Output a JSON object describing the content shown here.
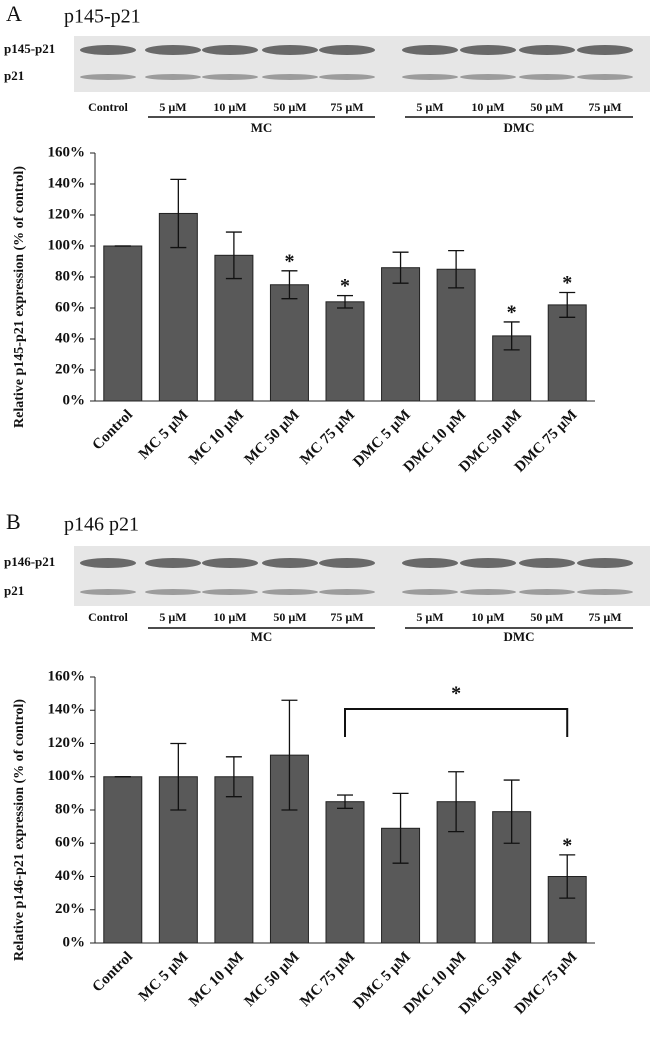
{
  "chart_data": [
    {
      "type": "bar",
      "panel": "A",
      "title": "p145-p21",
      "blot": {
        "rows": [
          "p145-p21",
          "p21"
        ],
        "lanes": [
          "Control",
          "5 µM",
          "10 µM",
          "50 µM",
          "75 µM",
          "5 µM",
          "10 µM",
          "50 µM",
          "75 µM"
        ],
        "groups": [
          "MC",
          "DMC"
        ]
      },
      "y_label": "Relative p145-p21 expression  (% of control)",
      "categories": [
        "Control",
        "MC 5 µM",
        "MC 10 µM",
        "MC 50 µM",
        "MC 75 µM",
        "DMC 5 µM",
        "DMC 10 µM",
        "DMC 50 µM",
        "DMC 75 µM"
      ],
      "values": [
        100,
        121,
        94,
        75,
        64,
        86,
        85,
        42,
        62
      ],
      "errors": [
        0,
        22,
        15,
        9,
        4,
        10,
        12,
        9,
        8
      ],
      "significance": [
        null,
        null,
        null,
        "*",
        "*",
        null,
        null,
        "*",
        "*"
      ],
      "color": "#595959",
      "ylim": [
        0,
        160
      ],
      "yticks": [
        {
          "value": 0,
          "label": "0%"
        },
        {
          "value": 20,
          "label": "20%"
        },
        {
          "value": 40,
          "label": "40%"
        },
        {
          "value": 60,
          "label": "60%"
        },
        {
          "value": 80,
          "label": "80%"
        },
        {
          "value": 100,
          "label": "100%"
        },
        {
          "value": 120,
          "label": "120%"
        },
        {
          "value": 140,
          "label": "140%"
        },
        {
          "value": 160,
          "label": "160%"
        }
      ]
    },
    {
      "type": "bar",
      "panel": "B",
      "title": "p146 p21",
      "blot": {
        "rows": [
          "p146-p21",
          "p21"
        ],
        "lanes": [
          "Control",
          "5 µM",
          "10 µM",
          "50 µM",
          "75 µM",
          "5 µM",
          "10 µM",
          "50 µM",
          "75 µM"
        ],
        "groups": [
          "MC",
          "DMC"
        ]
      },
      "y_label": "Relative p146-p21 expression  (% of control)",
      "categories": [
        "Control",
        "MC 5 µM",
        "MC 10 µM",
        "MC 50 µM",
        "MC 75 µM",
        "DMC 5 µM",
        "DMC 10 µM",
        "DMC 50 µM",
        "DMC 75 µM"
      ],
      "values": [
        100,
        100,
        100,
        113,
        85,
        69,
        85,
        79,
        40
      ],
      "errors": [
        0,
        20,
        12,
        33,
        4,
        21,
        18,
        19,
        13
      ],
      "significance": [
        null,
        null,
        null,
        null,
        null,
        null,
        null,
        null,
        "*"
      ],
      "bracket": {
        "from": "MC 75 µM",
        "to": "DMC 75 µM",
        "text": "*"
      },
      "color": "#595959",
      "ylim": [
        0,
        160
      ],
      "yticks": [
        {
          "value": 0,
          "label": "0%"
        },
        {
          "value": 20,
          "label": "20%"
        },
        {
          "value": 40,
          "label": "40%"
        },
        {
          "value": 60,
          "label": "60%"
        },
        {
          "value": 80,
          "label": "80%"
        },
        {
          "value": 100,
          "label": "100%"
        },
        {
          "value": 120,
          "label": "120%"
        },
        {
          "value": 140,
          "label": "140%"
        },
        {
          "value": 160,
          "label": "160%"
        }
      ]
    }
  ]
}
